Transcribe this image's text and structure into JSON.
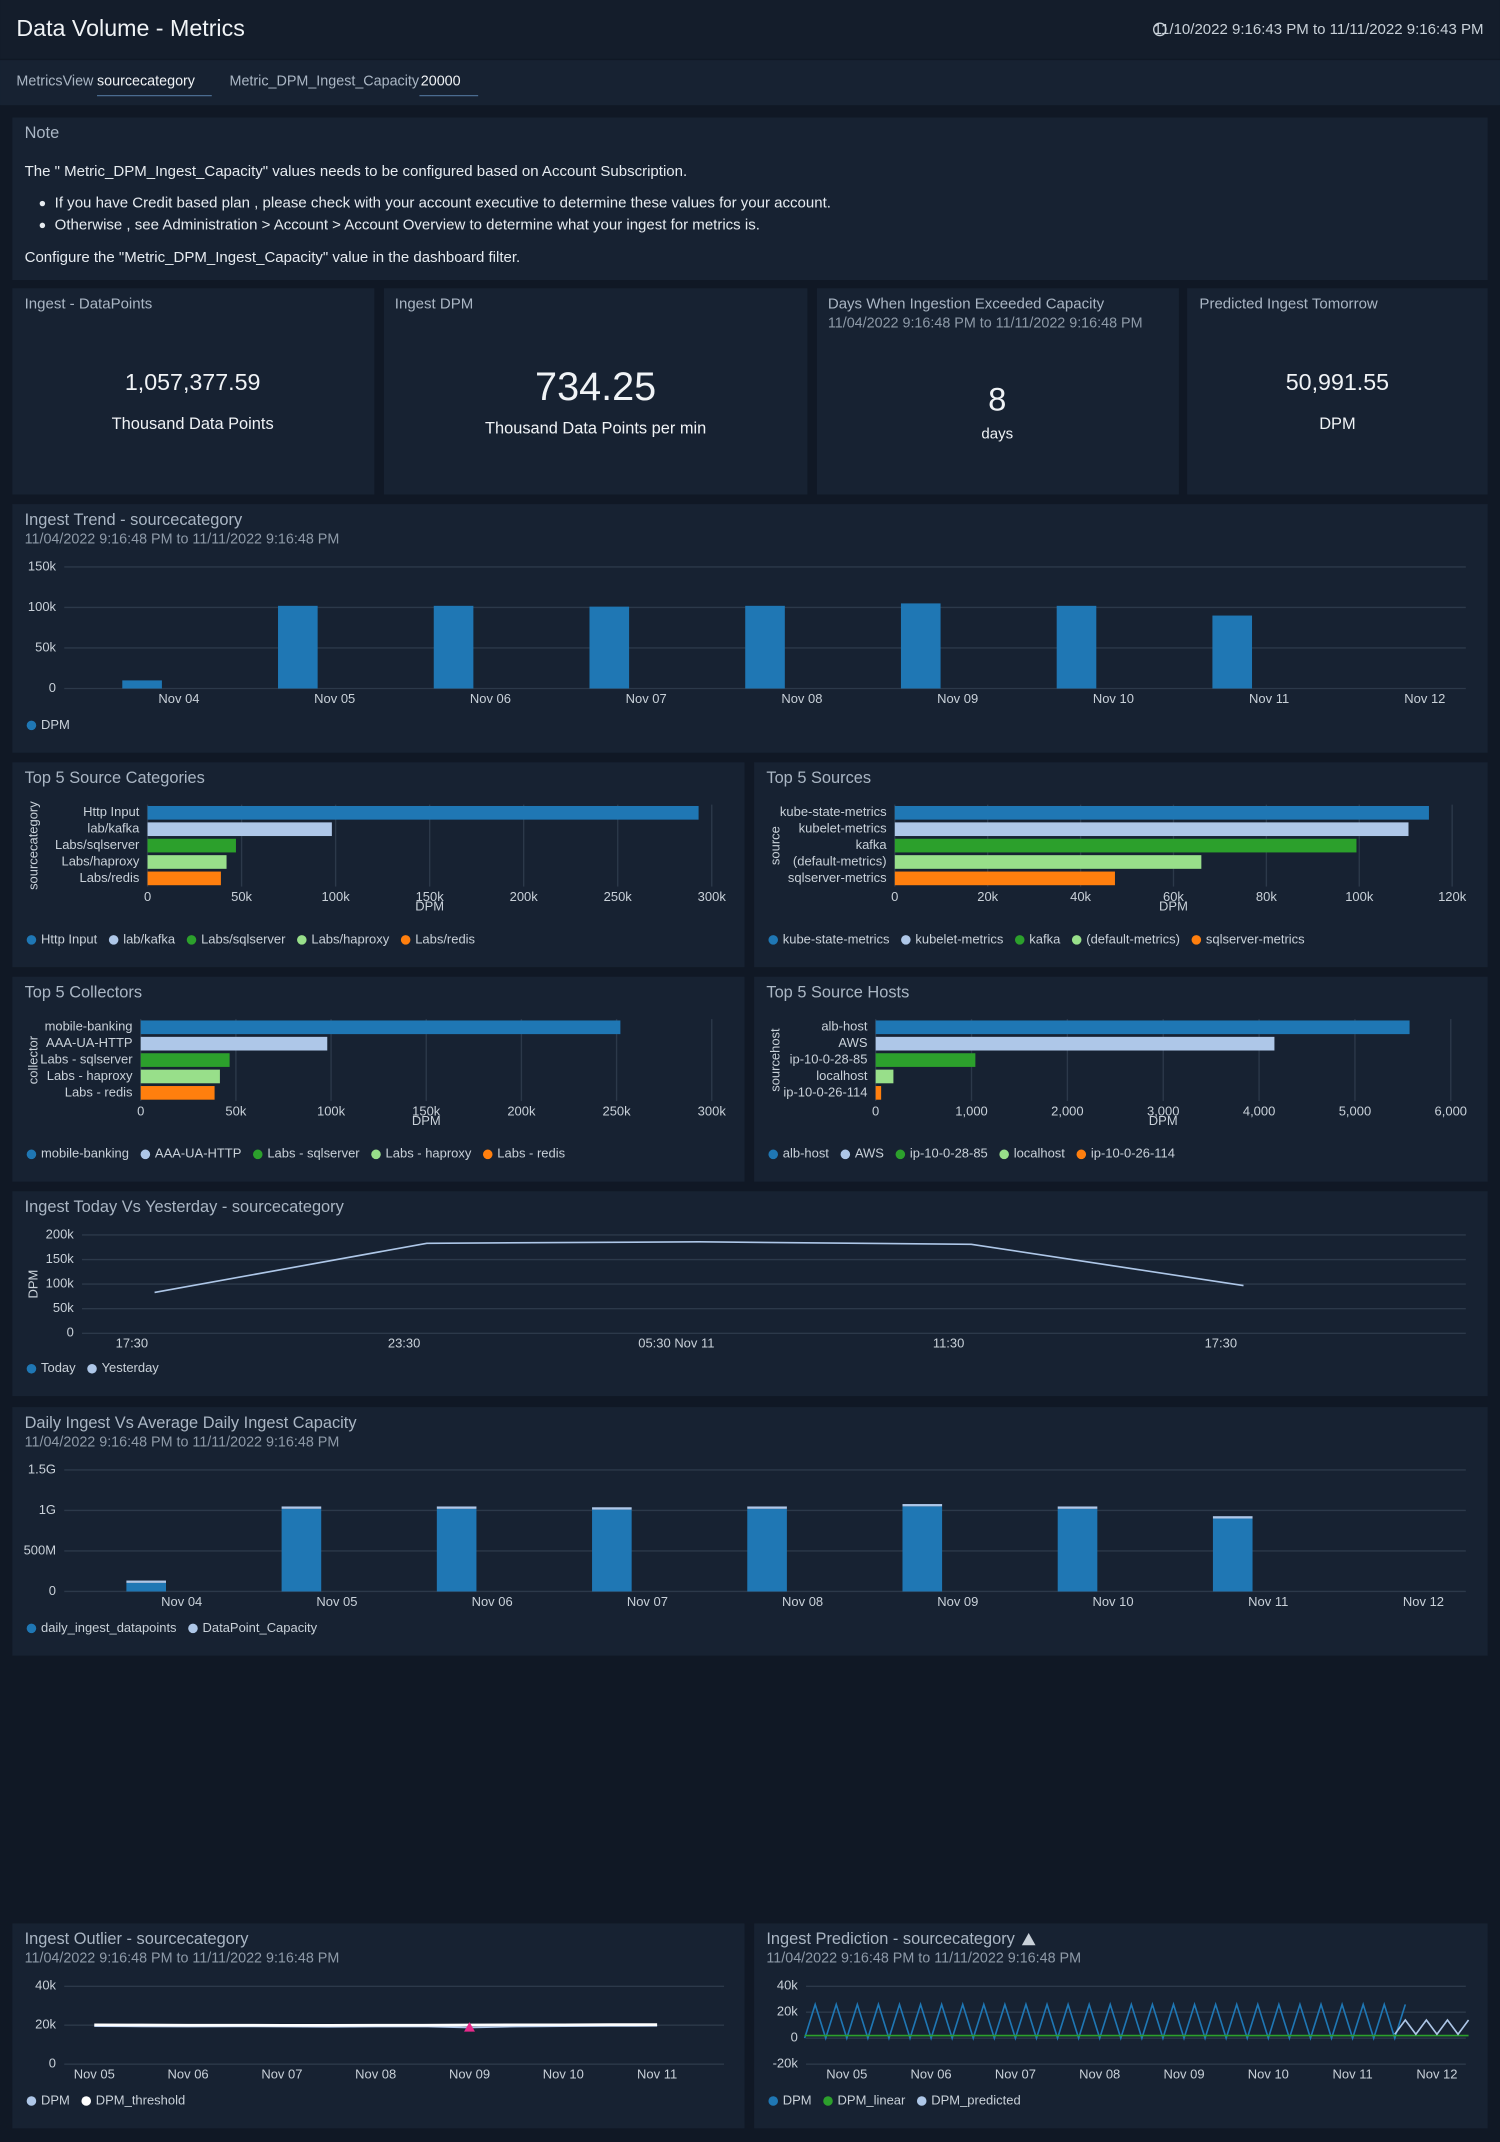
{
  "header": {
    "title": "Data Volume - Metrics",
    "time_range": "11/10/2022 9:16:43 PM to 11/11/2022 9:16:43 PM"
  },
  "filters": [
    {
      "label": "MetricsView",
      "value": "sourcecategory"
    },
    {
      "label": "Metric_DPM_Ingest_Capacity",
      "value": "20000"
    }
  ],
  "note": {
    "title": "Note",
    "intro": "The \" Metric_DPM_Ingest_Capacity\" values needs to be configured based on Account Subscription.",
    "bullets": [
      "If you have Credit based plan , please check with your account executive to determine these values for your account.",
      "Otherwise , see Administration > Account > Account Overview to determine what your ingest for metrics is."
    ],
    "outro": "Configure the \"Metric_DPM_Ingest_Capacity\" value in the dashboard filter."
  },
  "stats": [
    {
      "title": "Ingest - DataPoints",
      "value": "1,057,377.59",
      "unit": "Thousand Data Points"
    },
    {
      "title": "Ingest DPM",
      "value": "734.25",
      "unit": "Thousand Data Points per min"
    },
    {
      "title": "Days When Ingestion Exceeded Capacity",
      "subtitle": "11/04/2022 9:16:48 PM to 11/11/2022 9:16:48 PM",
      "value": "8",
      "unit": "days"
    },
    {
      "title": "Predicted Ingest Tomorrow",
      "value": "50,991.55",
      "unit": "DPM"
    }
  ],
  "chart_data": [
    {
      "type": "bar",
      "title": "Ingest Trend - sourcecategory",
      "subtitle": "11/04/2022 9:16:48 PM to 11/11/2022 9:16:48 PM",
      "categories": [
        "Nov 04",
        "Nov 05",
        "Nov 06",
        "Nov 07",
        "Nov 08",
        "Nov 09",
        "Nov 10",
        "Nov 11",
        "Nov 12"
      ],
      "series": [
        {
          "name": "DPM",
          "color": "#1f77b4",
          "values": [
            10000,
            102000,
            102000,
            101000,
            102000,
            105000,
            102000,
            90000,
            null
          ]
        }
      ],
      "ylim": [
        0,
        150000
      ],
      "yticks": [
        0,
        {
          "value": 50000,
          "label": "50k"
        },
        {
          "value": 100000,
          "label": "100k"
        },
        {
          "value": 150000,
          "label": "150k"
        }
      ],
      "grid": true
    },
    {
      "type": "bar",
      "orientation": "horizontal",
      "title": "Top 5 Source Categories",
      "categories": [
        "Http Input",
        "lab/kafka",
        "Labs/sqlserver",
        "Labs/haproxy",
        "Labs/redis"
      ],
      "values": [
        293000,
        98000,
        47000,
        42000,
        39000
      ],
      "colors": [
        "#1f77b4",
        "#aec7e8",
        "#2ca02c",
        "#98df8a",
        "#ff7f0e"
      ],
      "xlabel": "DPM",
      "ylabel": "sourcecategory",
      "xlim": [
        0,
        300000
      ],
      "xticks": [
        0,
        {
          "value": 50000,
          "label": "50k"
        },
        {
          "value": 100000,
          "label": "100k"
        },
        {
          "value": 150000,
          "label": "150k"
        },
        {
          "value": 200000,
          "label": "200k"
        },
        {
          "value": 250000,
          "label": "250k"
        },
        {
          "value": 300000,
          "label": "300k"
        }
      ],
      "grid": true
    },
    {
      "type": "bar",
      "orientation": "horizontal",
      "title": "Top 5 Sources",
      "categories": [
        "kube-state-metrics",
        "kubelet-metrics",
        "kafka",
        "(default-metrics)",
        "sqlserver-metrics"
      ],
      "values": [
        115000,
        110600,
        99400,
        66000,
        47400
      ],
      "colors": [
        "#1f77b4",
        "#aec7e8",
        "#2ca02c",
        "#98df8a",
        "#ff7f0e"
      ],
      "xlabel": "DPM",
      "ylabel": "source",
      "xlim": [
        0,
        120000
      ],
      "xticks": [
        0,
        {
          "value": 20000,
          "label": "20k"
        },
        {
          "value": 40000,
          "label": "40k"
        },
        {
          "value": 60000,
          "label": "60k"
        },
        {
          "value": 80000,
          "label": "80k"
        },
        {
          "value": 100000,
          "label": "100k"
        },
        {
          "value": 120000,
          "label": "120k"
        }
      ],
      "grid": true
    },
    {
      "type": "bar",
      "orientation": "horizontal",
      "title": "Top 5 Collectors",
      "categories": [
        "mobile-banking",
        "AAA-UA-HTTP",
        "Labs - sqlserver",
        "Labs - haproxy",
        "Labs - redis"
      ],
      "values": [
        252000,
        98000,
        46700,
        41600,
        38800
      ],
      "colors": [
        "#1f77b4",
        "#aec7e8",
        "#2ca02c",
        "#98df8a",
        "#ff7f0e"
      ],
      "xlabel": "DPM",
      "ylabel": "collector",
      "xlim": [
        0,
        300000
      ],
      "xticks": [
        0,
        {
          "value": 50000,
          "label": "50k"
        },
        {
          "value": 100000,
          "label": "100k"
        },
        {
          "value": 150000,
          "label": "150k"
        },
        {
          "value": 200000,
          "label": "200k"
        },
        {
          "value": 250000,
          "label": "250k"
        },
        {
          "value": 300000,
          "label": "300k"
        }
      ],
      "grid": true
    },
    {
      "type": "bar",
      "orientation": "horizontal",
      "title": "Top 5 Source Hosts",
      "categories": [
        "alb-host",
        "AWS",
        "ip-10-0-28-85",
        "localhost",
        "ip-10-0-26-114"
      ],
      "values": [
        5570,
        4160,
        1040,
        185,
        57
      ],
      "colors": [
        "#1f77b4",
        "#aec7e8",
        "#2ca02c",
        "#98df8a",
        "#ff7f0e"
      ],
      "xlabel": "DPM",
      "ylabel": "sourcehost",
      "xlim": [
        0,
        6000
      ],
      "xticks": [
        0,
        {
          "value": 1000,
          "label": "1,000"
        },
        {
          "value": 2000,
          "label": "2,000"
        },
        {
          "value": 3000,
          "label": "3,000"
        },
        {
          "value": 4000,
          "label": "4,000"
        },
        {
          "value": 5000,
          "label": "5,000"
        },
        {
          "value": 6000,
          "label": "6,000"
        }
      ],
      "grid": true
    },
    {
      "type": "line",
      "title": "Ingest Today Vs Yesterday - sourcecategory",
      "ylabel": "DPM",
      "x": [
        18,
        24,
        30,
        36,
        42
      ],
      "xlim": [
        16.4,
        46.9
      ],
      "xticks": [
        {
          "value": 17.5,
          "label": "17:30"
        },
        {
          "value": 23.5,
          "label": "23:30"
        },
        {
          "value": 29.5,
          "label": "05:30 Nov 11"
        },
        {
          "value": 35.5,
          "label": "11:30"
        },
        {
          "value": 41.5,
          "label": "17:30"
        }
      ],
      "series": [
        {
          "name": "Today",
          "color": "#1f77b4",
          "values": [
            null,
            null,
            null,
            null,
            null
          ]
        },
        {
          "name": "Yesterday",
          "color": "#aec7e8",
          "values": [
            83000,
            183000,
            186000,
            181000,
            97000
          ]
        }
      ],
      "ylim": [
        0,
        200000
      ],
      "yticks": [
        0,
        {
          "value": 50000,
          "label": "50k"
        },
        {
          "value": 100000,
          "label": "100k"
        },
        {
          "value": 150000,
          "label": "150k"
        },
        {
          "value": 200000,
          "label": "200k"
        }
      ],
      "grid": true
    },
    {
      "type": "bar",
      "stacked": true,
      "title": "Daily Ingest Vs Average Daily Ingest Capacity",
      "subtitle": "11/04/2022 9:16:48 PM to 11/11/2022 9:16:48 PM",
      "categories": [
        "Nov 04",
        "Nov 05",
        "Nov 06",
        "Nov 07",
        "Nov 08",
        "Nov 09",
        "Nov 10",
        "Nov 11",
        "Nov 12"
      ],
      "series": [
        {
          "name": "daily_ingest_datapoints",
          "color": "#1f77b4",
          "values": [
            106000000,
            1020000000,
            1020000000,
            1010000000,
            1020000000,
            1050000000,
            1020000000,
            900000000,
            null
          ]
        },
        {
          "name": "DataPoint_Capacity",
          "color": "#aec7e8",
          "values": [
            28800000,
            28800000,
            28800000,
            28800000,
            28800000,
            28800000,
            28800000,
            28800000,
            null
          ]
        }
      ],
      "ylim": [
        0,
        1500000000
      ],
      "yticks": [
        0,
        {
          "value": 500000000,
          "label": "500M"
        },
        {
          "value": 1000000000,
          "label": "1G"
        },
        {
          "value": 1500000000,
          "label": "1.5G"
        }
      ],
      "grid": true
    },
    {
      "type": "line",
      "title": "Ingest Outlier - sourcecategory",
      "subtitle": "11/04/2022 9:16:48 PM to 11/11/2022 9:16:48 PM",
      "categories": [
        "Nov 05",
        null,
        "Nov 06",
        null,
        "Nov 07",
        null,
        "Nov 08",
        null,
        "Nov 09",
        null,
        "Nov 10",
        null,
        "Nov 11"
      ],
      "series": [
        {
          "name": "DPM",
          "color": "#aec7e8",
          "values": [
            19500,
            19400,
            19300,
            19400,
            19300,
            19200,
            19300,
            19400,
            18800,
            19300,
            19500,
            19600,
            19700
          ]
        },
        {
          "name": "DPM_threshold",
          "color": "#ffffff",
          "values": [
            20200,
            20100,
            20000,
            20000,
            19900,
            19900,
            20000,
            20000,
            20100,
            20200,
            20200,
            20300,
            20300
          ]
        },
        {
          "color": "#e7298a",
          "marker": "triangle",
          "values": [
            null,
            null,
            null,
            null,
            null,
            null,
            null,
            null,
            18800,
            null,
            null,
            null,
            null
          ]
        }
      ],
      "ylim": [
        0,
        40000
      ],
      "yticks": [
        0,
        {
          "value": 20000,
          "label": "20k"
        },
        {
          "value": 40000,
          "label": "40k"
        }
      ],
      "grid": true
    },
    {
      "type": "line",
      "title": "Ingest Prediction - sourcecategory",
      "subtitle": "11/04/2022 9:16:48 PM to 11/11/2022 9:16:48 PM",
      "categories": [
        null,
        null,
        null,
        null,
        "Nov 05",
        null,
        null,
        null,
        null,
        null,
        null,
        null,
        "Nov 06",
        null,
        null,
        null,
        null,
        null,
        null,
        null,
        "Nov 07",
        null,
        null,
        null,
        null,
        null,
        null,
        null,
        "Nov 08",
        null,
        null,
        null,
        null,
        null,
        null,
        null,
        "Nov 09",
        null,
        null,
        null,
        null,
        null,
        null,
        null,
        "Nov 10",
        null,
        null,
        null,
        null,
        null,
        null,
        null,
        "Nov 11",
        null,
        null,
        null,
        null,
        null,
        null,
        null,
        "Nov 12",
        null,
        null,
        null
      ],
      "series": [
        {
          "name": "DPM",
          "color": "#1f77b4",
          "values": [
            0,
            26000,
            0,
            26000,
            0,
            26000,
            0,
            26000,
            0,
            26000,
            0,
            26000,
            0,
            26000,
            0,
            26000,
            0,
            26000,
            0,
            26000,
            0,
            26000,
            0,
            26000,
            0,
            26000,
            0,
            26000,
            0,
            26000,
            0,
            26000,
            0,
            26000,
            0,
            26000,
            0,
            26000,
            0,
            26000,
            0,
            26000,
            0,
            26000,
            0,
            26000,
            0,
            26000,
            0,
            26000,
            0,
            26000,
            0,
            26000,
            0,
            26000,
            0,
            26000,
            null,
            null,
            null,
            null,
            null,
            null
          ]
        },
        {
          "name": "DPM_linear",
          "color": "#2ca02c",
          "values": [
            2000,
            2000,
            2000,
            2000,
            2000,
            2000,
            2000,
            2000,
            2000,
            2000,
            2000,
            2000,
            2000,
            2000,
            2000,
            2000,
            2000,
            2000,
            2000,
            2000,
            2000,
            2000,
            2000,
            2000,
            2000,
            2000,
            2000,
            2000,
            2000,
            2000,
            2000,
            2000,
            2000,
            2000,
            2000,
            2000,
            2000,
            2000,
            2000,
            2000,
            2000,
            2000,
            2000,
            2000,
            2000,
            2000,
            2000,
            2000,
            2000,
            2000,
            2000,
            2000,
            2000,
            2000,
            2000,
            2000,
            2000,
            2000,
            2000,
            2000,
            2000,
            2000,
            2000,
            2000
          ]
        },
        {
          "name": "DPM_predicted",
          "color": "#aec7e8",
          "values": [
            null,
            null,
            null,
            null,
            null,
            null,
            null,
            null,
            null,
            null,
            null,
            null,
            null,
            null,
            null,
            null,
            null,
            null,
            null,
            null,
            null,
            null,
            null,
            null,
            null,
            null,
            null,
            null,
            null,
            null,
            null,
            null,
            null,
            null,
            null,
            null,
            null,
            null,
            null,
            null,
            null,
            null,
            null,
            null,
            null,
            null,
            null,
            null,
            null,
            null,
            null,
            null,
            null,
            null,
            null,
            null,
            3000,
            14000,
            3000,
            14000,
            3000,
            14000,
            3000,
            14000
          ]
        }
      ],
      "ylim": [
        -20000,
        40000
      ],
      "yticks": [
        {
          "value": -20000,
          "label": "-20k"
        },
        0,
        {
          "value": 20000,
          "label": "20k"
        },
        {
          "value": 40000,
          "label": "40k"
        }
      ],
      "grid": true
    }
  ]
}
